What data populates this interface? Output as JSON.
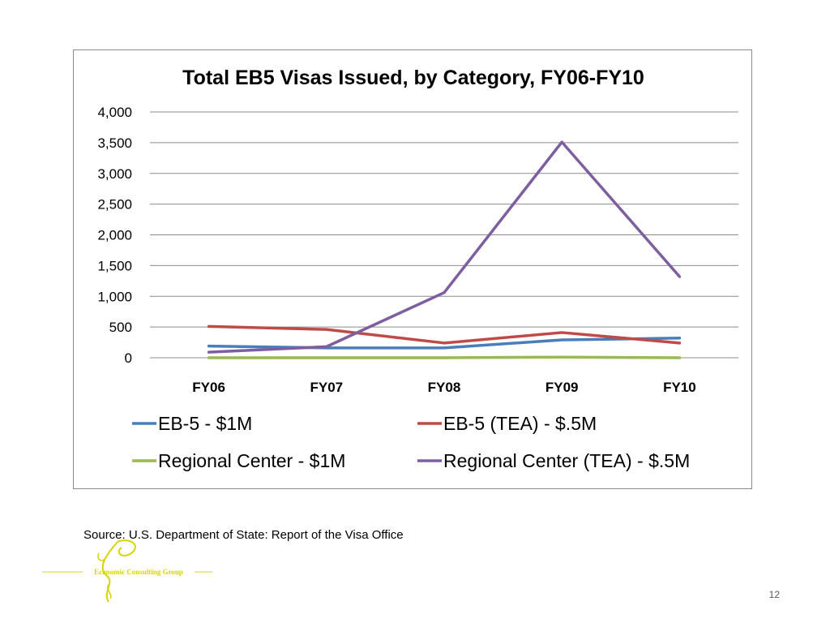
{
  "chart_data": {
    "type": "line",
    "title": "Total EB5 Visas Issued, by Category, FY06-FY10",
    "categories": [
      "FY06",
      "FY07",
      "FY08",
      "FY09",
      "FY10"
    ],
    "ylim": [
      0,
      4000
    ],
    "yticks": [
      0,
      500,
      1000,
      1500,
      2000,
      2500,
      3000,
      3500,
      4000
    ],
    "ytick_labels": [
      "0",
      "500",
      "1,000",
      "1,500",
      "2,000",
      "2,500",
      "3,000",
      "3,500",
      "4,000"
    ],
    "grid": true,
    "legend_position": "bottom",
    "series": [
      {
        "name": "EB-5 - $1M",
        "color": "#4a7ebb",
        "values": [
          190,
          160,
          160,
          290,
          320
        ]
      },
      {
        "name": "EB-5 (TEA) - $.5M",
        "color": "#be4b48",
        "values": [
          510,
          460,
          240,
          410,
          240
        ]
      },
      {
        "name": "Regional Center - $1M",
        "color": "#98b954",
        "values": [
          0,
          0,
          0,
          10,
          0
        ]
      },
      {
        "name": "Regional Center (TEA) - $.5M",
        "color": "#7d5fa0",
        "values": [
          90,
          180,
          1060,
          3510,
          1320
        ]
      }
    ]
  },
  "footer": {
    "source": "Source:  U.S. Department of State: Report of the Visa Office",
    "page_number": "12"
  },
  "logo": {
    "text": "Economic Consulting Group",
    "color": "#d9d400"
  }
}
